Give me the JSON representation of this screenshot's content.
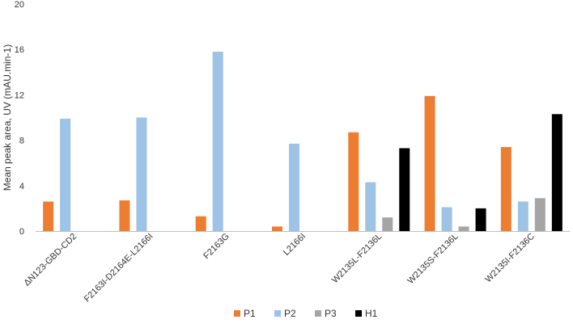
{
  "chart_data": {
    "type": "bar",
    "title": "",
    "xlabel": "",
    "ylabel": "Mean peak area, UV (mAU.min-1)",
    "ylim": [
      0,
      20
    ],
    "yticks": [
      0,
      4,
      8,
      12,
      16,
      20
    ],
    "grid": false,
    "legend_position": "bottom",
    "categories": [
      "ΔN123-GBD-CD2",
      "F2163I-D2164E-L2166I",
      "F2163G",
      "L2166I",
      "W2135L-F2136L",
      "W2135S-F2136L",
      "W2135I-F2136C"
    ],
    "series": [
      {
        "name": "P1",
        "color": "#ED7D31",
        "values": [
          2.6,
          2.7,
          1.3,
          0.4,
          8.7,
          11.9,
          7.4
        ]
      },
      {
        "name": "P2",
        "color": "#9DC3E6",
        "values": [
          9.9,
          10.0,
          15.8,
          7.7,
          4.3,
          2.1,
          2.6
        ]
      },
      {
        "name": "P3",
        "color": "#A5A5A5",
        "values": [
          0,
          0,
          0,
          0,
          1.2,
          0.4,
          2.9
        ]
      },
      {
        "name": "H1",
        "color": "#000000",
        "values": [
          0,
          0,
          0,
          0,
          7.3,
          2.0,
          10.3
        ]
      }
    ]
  }
}
